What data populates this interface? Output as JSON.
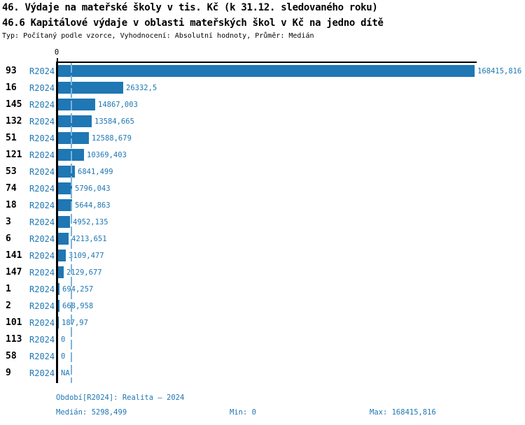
{
  "header": {
    "title_line1": "46. Výdaje na mateřské školy v tis. Kč (k 31.12. sledovaného roku)",
    "title_line2": "46.6 Kapitálové výdaje v oblasti mateřských škol v Kč na jedno dítě",
    "subtitle": "Typ: Počítaný podle vzorce, Vyhodnocení: Absolutní hodnoty, Průměr: Medián"
  },
  "chart_data": {
    "type": "bar",
    "orientation": "horizontal",
    "axis_tick_label": "0",
    "series_label": "R2024",
    "categories": [
      "93",
      "16",
      "145",
      "132",
      "51",
      "121",
      "53",
      "74",
      "18",
      "3",
      "6",
      "141",
      "147",
      "1",
      "2",
      "101",
      "113",
      "58",
      "9"
    ],
    "values": [
      168415.816,
      26332.5,
      14867.003,
      13584.665,
      12588.679,
      10369.403,
      6841.499,
      5796.043,
      5644.863,
      4952.135,
      4213.651,
      3109.477,
      2129.677,
      694.257,
      668.958,
      187.97,
      0,
      0,
      null
    ],
    "value_labels": [
      "168415,816",
      "26332,5",
      "14867,003",
      "13584,665",
      "12588,679",
      "10369,403",
      "6841,499",
      "5796,043",
      "5644,863",
      "4952,135",
      "4213,651",
      "3109,477",
      "2129,677",
      "694,257",
      "668,958",
      "187,97",
      "0",
      "0",
      "NA"
    ],
    "xlim": [
      0,
      168415.816
    ],
    "median": 5298.499,
    "grid": false,
    "legend": "none",
    "colors": {
      "bar": "#1f77b4",
      "blue_text": "#1f77b4",
      "median_line": "#7eb3d8",
      "axis": "#000000"
    }
  },
  "footer": {
    "period": "Období[R2024]: Realita – 2024",
    "median_label": "Medián: 5298,499",
    "min_label": "Min: 0",
    "max_label": "Max: 168415,816"
  }
}
